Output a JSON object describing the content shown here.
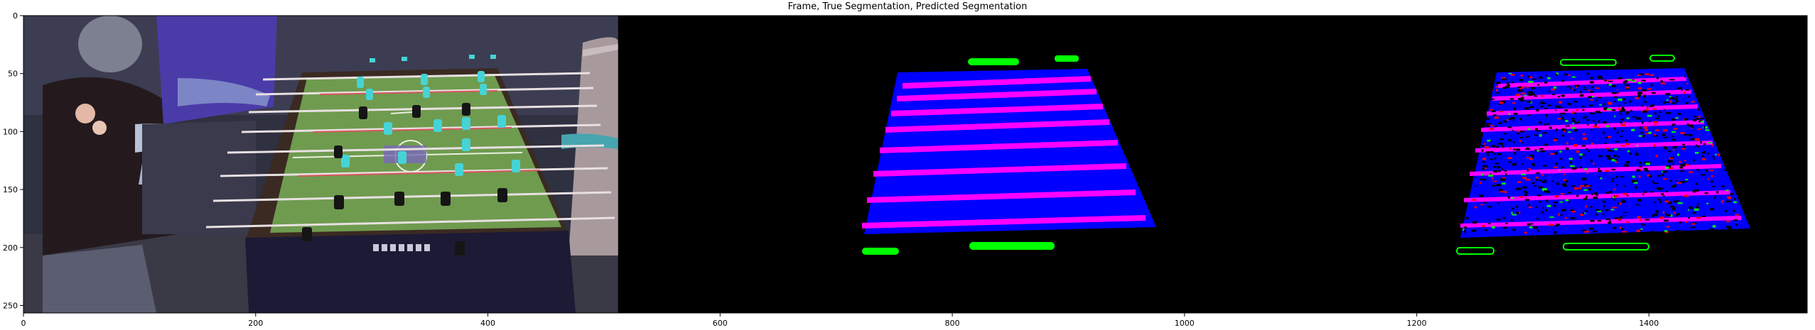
{
  "figure": {
    "title": "Frame, True Segmentation, Predicted Segmentation"
  },
  "axes": {
    "x_ticks": [
      "0",
      "200",
      "400",
      "600",
      "800",
      "1000",
      "1200",
      "1400"
    ],
    "y_ticks": [
      "0",
      "50",
      "100",
      "150",
      "200",
      "250"
    ]
  },
  "panels": [
    {
      "name": "frame",
      "kind": "photo of a foosball table with players"
    },
    {
      "name": "true-segmentation",
      "kind": "mask: blue table area, magenta rods, green end markers"
    },
    {
      "name": "predicted-segmentation",
      "kind": "noisy mask: blue table area, magenta rods, red/green speckle"
    }
  ],
  "colors": {
    "background": "#000000",
    "table": "#0000ff",
    "rods": "#ff00ff",
    "markers": "#00ff00",
    "noise": "#ff0000",
    "felt": "#6f9b4f",
    "player": "#46d3d6"
  }
}
